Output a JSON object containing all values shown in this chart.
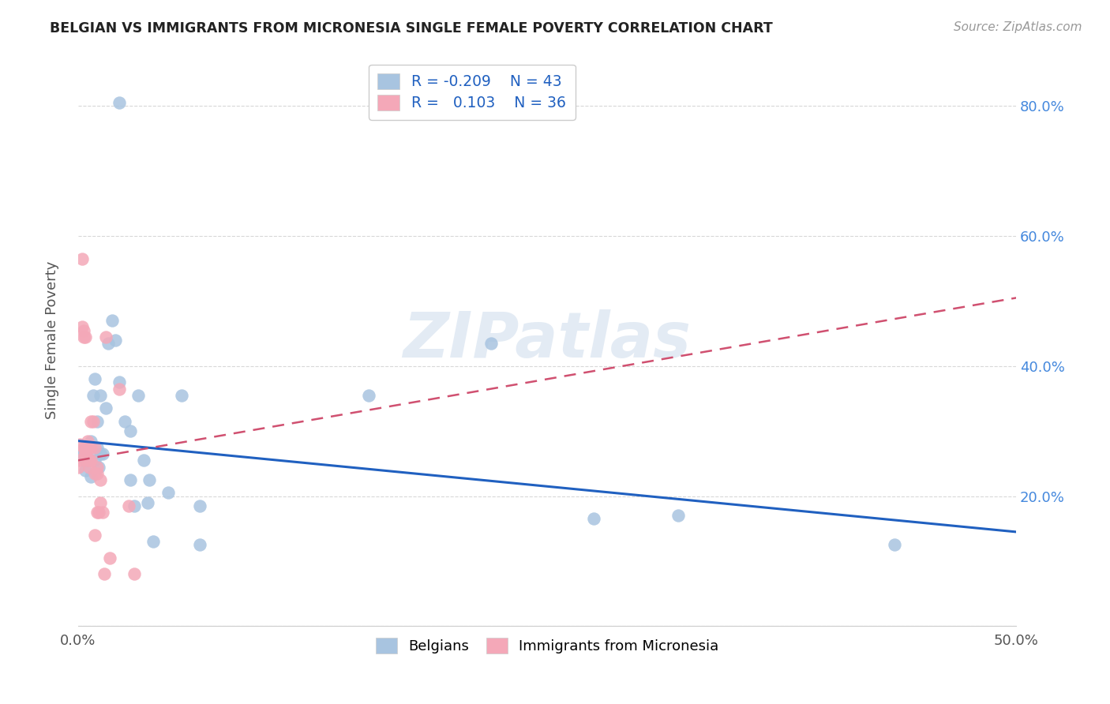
{
  "title": "BELGIAN VS IMMIGRANTS FROM MICRONESIA SINGLE FEMALE POVERTY CORRELATION CHART",
  "source": "Source: ZipAtlas.com",
  "ylabel": "Single Female Poverty",
  "watermark": "ZIPatlas",
  "blue_label": "Belgians",
  "pink_label": "Immigrants from Micronesia",
  "blue_R": "-0.209",
  "blue_N": "43",
  "pink_R": "0.103",
  "pink_N": "36",
  "blue_color": "#a8c4e0",
  "pink_color": "#f4a8b8",
  "blue_line_color": "#2060c0",
  "pink_line_color": "#d05070",
  "xmin": 0.0,
  "xmax": 0.5,
  "ymin": 0.0,
  "ymax": 0.88,
  "yticks": [
    0.0,
    0.2,
    0.4,
    0.6,
    0.8
  ],
  "ytick_labels": [
    "",
    "20.0%",
    "40.0%",
    "60.0%",
    "80.0%"
  ],
  "blue_line_x0": 0.0,
  "blue_line_x1": 0.5,
  "blue_line_y0": 0.285,
  "blue_line_y1": 0.145,
  "pink_line_x0": 0.0,
  "pink_line_x1": 0.5,
  "pink_line_y0": 0.255,
  "pink_line_y1": 0.505,
  "blue_x": [
    0.022,
    0.001,
    0.002,
    0.003,
    0.004,
    0.004,
    0.005,
    0.005,
    0.006,
    0.007,
    0.007,
    0.008,
    0.009,
    0.009,
    0.01,
    0.01,
    0.011,
    0.012,
    0.012,
    0.013,
    0.015,
    0.016,
    0.018,
    0.02,
    0.022,
    0.025,
    0.028,
    0.028,
    0.03,
    0.032,
    0.035,
    0.037,
    0.038,
    0.04,
    0.048,
    0.055,
    0.065,
    0.065,
    0.155,
    0.22,
    0.275,
    0.32,
    0.435
  ],
  "blue_y": [
    0.805,
    0.27,
    0.265,
    0.26,
    0.255,
    0.24,
    0.26,
    0.275,
    0.255,
    0.285,
    0.23,
    0.355,
    0.38,
    0.255,
    0.315,
    0.275,
    0.245,
    0.265,
    0.355,
    0.265,
    0.335,
    0.435,
    0.47,
    0.44,
    0.375,
    0.315,
    0.225,
    0.3,
    0.185,
    0.355,
    0.255,
    0.19,
    0.225,
    0.13,
    0.205,
    0.355,
    0.185,
    0.125,
    0.355,
    0.435,
    0.165,
    0.17,
    0.125
  ],
  "pink_x": [
    0.0,
    0.001,
    0.001,
    0.002,
    0.002,
    0.003,
    0.003,
    0.003,
    0.004,
    0.004,
    0.004,
    0.005,
    0.005,
    0.005,
    0.006,
    0.006,
    0.007,
    0.007,
    0.007,
    0.008,
    0.009,
    0.009,
    0.009,
    0.01,
    0.01,
    0.01,
    0.011,
    0.012,
    0.012,
    0.013,
    0.014,
    0.015,
    0.017,
    0.022,
    0.027,
    0.03
  ],
  "pink_y": [
    0.245,
    0.255,
    0.28,
    0.565,
    0.46,
    0.445,
    0.455,
    0.275,
    0.445,
    0.265,
    0.265,
    0.275,
    0.285,
    0.255,
    0.255,
    0.245,
    0.275,
    0.315,
    0.255,
    0.315,
    0.275,
    0.14,
    0.235,
    0.235,
    0.245,
    0.175,
    0.175,
    0.225,
    0.19,
    0.175,
    0.08,
    0.445,
    0.105,
    0.365,
    0.185,
    0.08
  ],
  "background_color": "#ffffff",
  "grid_color": "#d8d8d8"
}
